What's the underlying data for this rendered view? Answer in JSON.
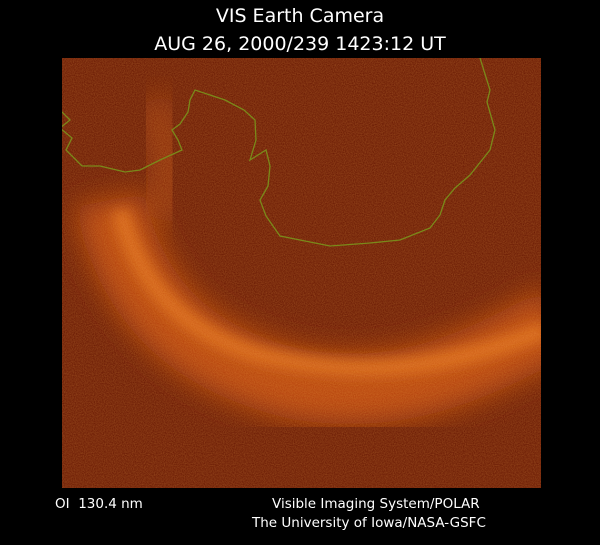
{
  "header": {
    "title": "VIS Earth Camera",
    "subtitle": "AUG 26, 2000/239 1423:12 UT"
  },
  "footer": {
    "left": "OI  130.4 nm",
    "right_line1": "Visible Imaging System/POLAR",
    "right_line2": "The University of Iowa/NASA-GSFC"
  }
}
